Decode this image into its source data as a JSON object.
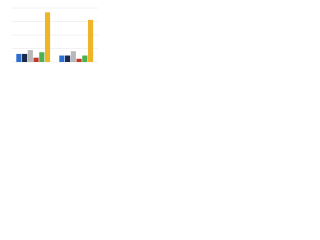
{
  "chart_data": {
    "type": "bar",
    "categories": [
      null,
      null
    ],
    "series": [
      {
        "color": "#2f6fd1",
        "values": [
          15,
          12
        ]
      },
      {
        "color": "#1b2a4a",
        "values": [
          15,
          12
        ]
      },
      {
        "color": "#b8b8b8",
        "values": [
          22,
          20
        ]
      },
      {
        "color": "#c0392b",
        "values": [
          8,
          6
        ]
      },
      {
        "color": "#4caf50",
        "values": [
          18,
          12
        ]
      },
      {
        "color": "#f0b429",
        "values": [
          92,
          78
        ]
      }
    ],
    "ylim": [
      0,
      100
    ],
    "yticks": [
      0,
      25,
      50,
      75,
      100
    ],
    "grid": true
  }
}
